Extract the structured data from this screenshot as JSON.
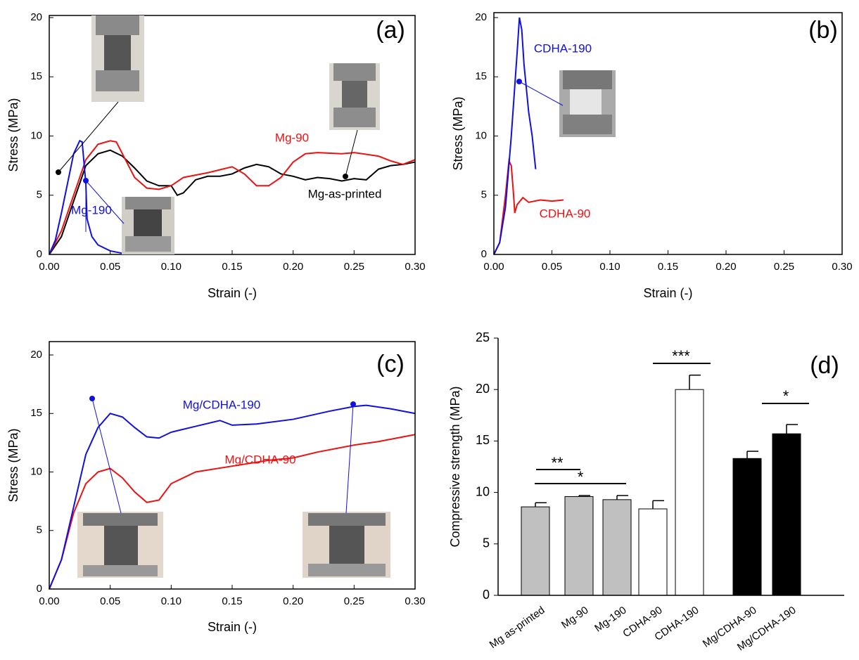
{
  "chart_data": [
    {
      "type": "line",
      "label": "(a)",
      "xlabel": "Strain (-)",
      "ylabel": "Stress (MPa)",
      "xlim": [
        0,
        0.3
      ],
      "xticks": [
        {
          "value": 0,
          "label": "0.00"
        },
        {
          "value": 0.05,
          "label": "0.05"
        },
        {
          "value": 0.1,
          "label": "0.10"
        },
        {
          "value": 0.15,
          "label": "0.15"
        },
        {
          "value": 0.2,
          "label": "0.20"
        },
        {
          "value": 0.25,
          "label": "0.25"
        },
        {
          "value": 0.3,
          "label": "0.30"
        }
      ],
      "ylim": [
        0,
        20
      ],
      "yticks": [
        0,
        5,
        10,
        15,
        20
      ],
      "series": [
        {
          "name": "Mg-190",
          "color": "#1010e0",
          "x": [
            0,
            0.005,
            0.01,
            0.015,
            0.02,
            0.025,
            0.027,
            0.03,
            0.031,
            0.035,
            0.04,
            0.05,
            0.06
          ],
          "values": [
            0,
            1.2,
            3.5,
            6,
            8.5,
            9.6,
            9.5,
            6,
            3,
            1.5,
            0.8,
            0.3,
            0.1
          ]
        },
        {
          "name": "Mg-90",
          "color": "#ee1111",
          "x": [
            0,
            0.01,
            0.02,
            0.03,
            0.04,
            0.05,
            0.055,
            0.06,
            0.07,
            0.08,
            0.09,
            0.1,
            0.11,
            0.12,
            0.13,
            0.15,
            0.16,
            0.17,
            0.18,
            0.19,
            0.2,
            0.21,
            0.22,
            0.24,
            0.25,
            0.27,
            0.28,
            0.29,
            0.3
          ],
          "values": [
            0,
            2,
            5,
            8,
            9.3,
            9.6,
            9.5,
            8.5,
            6.5,
            5.6,
            5.5,
            5.8,
            6.5,
            6.7,
            6.9,
            7.4,
            6.8,
            5.8,
            5.8,
            6.5,
            7.8,
            8.5,
            8.6,
            8.5,
            8.6,
            8.3,
            7.9,
            7.6,
            8.0
          ]
        },
        {
          "name": "Mg-as-printed",
          "color": "#000000",
          "x": [
            0,
            0.01,
            0.02,
            0.03,
            0.04,
            0.05,
            0.06,
            0.07,
            0.08,
            0.09,
            0.1,
            0.105,
            0.11,
            0.12,
            0.13,
            0.14,
            0.15,
            0.16,
            0.17,
            0.18,
            0.19,
            0.2,
            0.21,
            0.22,
            0.23,
            0.24,
            0.25,
            0.26,
            0.27,
            0.28,
            0.29,
            0.3
          ],
          "values": [
            0,
            1.5,
            4.5,
            7.5,
            8.5,
            8.8,
            8.3,
            7.3,
            6.2,
            5.8,
            5.8,
            5.0,
            5.2,
            6.3,
            6.6,
            6.6,
            6.8,
            7.3,
            7.6,
            7.4,
            6.8,
            6.6,
            6.3,
            6.5,
            6.4,
            6.2,
            6.4,
            6.3,
            7.2,
            7.5,
            7.6,
            7.8
          ]
        }
      ]
    },
    {
      "type": "line",
      "label": "(b)",
      "xlabel": "Strain (-)",
      "ylabel": "Stress (MPa)",
      "xlim": [
        0,
        0.3
      ],
      "xticks": [
        {
          "value": 0,
          "label": "0.00"
        },
        {
          "value": 0.05,
          "label": "0.05"
        },
        {
          "value": 0.1,
          "label": "0.10"
        },
        {
          "value": 0.15,
          "label": "0.15"
        },
        {
          "value": 0.2,
          "label": "0.20"
        },
        {
          "value": 0.25,
          "label": "0.25"
        },
        {
          "value": 0.3,
          "label": "0.30"
        }
      ],
      "ylim": [
        0,
        20
      ],
      "yticks": [
        0,
        5,
        10,
        15,
        20
      ],
      "series": [
        {
          "name": "CDHA-190",
          "color": "#1010e0",
          "x": [
            0,
            0.005,
            0.01,
            0.015,
            0.02,
            0.022,
            0.024,
            0.026,
            0.028,
            0.03,
            0.033,
            0.036
          ],
          "values": [
            0,
            1,
            4,
            10,
            17,
            20,
            19,
            16,
            14,
            12,
            10,
            7.2
          ]
        },
        {
          "name": "CDHA-90",
          "color": "#ee1111",
          "x": [
            0,
            0.005,
            0.01,
            0.013,
            0.015,
            0.017,
            0.018,
            0.02,
            0.025,
            0.03,
            0.04,
            0.05,
            0.06
          ],
          "values": [
            0,
            1,
            5,
            7.9,
            7.5,
            5,
            3.5,
            4.2,
            4.8,
            4.4,
            4.6,
            4.5,
            4.6
          ]
        }
      ]
    },
    {
      "type": "line",
      "label": "(c)",
      "xlabel": "Strain (-)",
      "ylabel": "Stress (MPa)",
      "xlim": [
        0,
        0.3
      ],
      "xticks": [
        {
          "value": 0,
          "label": "0.00"
        },
        {
          "value": 0.05,
          "label": "0.05"
        },
        {
          "value": 0.1,
          "label": "0.10"
        },
        {
          "value": 0.15,
          "label": "0.15"
        },
        {
          "value": 0.2,
          "label": "0.20"
        },
        {
          "value": 0.25,
          "label": "0.25"
        },
        {
          "value": 0.3,
          "label": "0.30"
        }
      ],
      "ylim": [
        0,
        20
      ],
      "yticks": [
        0,
        5,
        10,
        15,
        20
      ],
      "series": [
        {
          "name": "Mg/CDHA-190",
          "color": "#1010e0",
          "x": [
            0,
            0.01,
            0.02,
            0.03,
            0.04,
            0.05,
            0.06,
            0.07,
            0.08,
            0.09,
            0.1,
            0.12,
            0.14,
            0.15,
            0.17,
            0.2,
            0.23,
            0.25,
            0.26,
            0.28,
            0.3
          ],
          "values": [
            0,
            2.5,
            7,
            11.5,
            13.8,
            15,
            14.7,
            13.8,
            13,
            12.9,
            13.4,
            13.9,
            14.4,
            14,
            14.1,
            14.5,
            15.2,
            15.6,
            15.7,
            15.4,
            15.0
          ]
        },
        {
          "name": "Mg/CDHA-90",
          "color": "#ee1111",
          "x": [
            0,
            0.01,
            0.02,
            0.03,
            0.04,
            0.05,
            0.06,
            0.07,
            0.08,
            0.09,
            0.1,
            0.12,
            0.15,
            0.18,
            0.2,
            0.22,
            0.25,
            0.27,
            0.3
          ],
          "values": [
            0,
            2.5,
            6.5,
            9,
            10,
            10.3,
            9.5,
            8.3,
            7.4,
            7.6,
            9,
            10,
            10.5,
            11,
            11.2,
            11.7,
            12.3,
            12.6,
            13.2
          ]
        }
      ]
    },
    {
      "type": "bar",
      "label": "(d)",
      "ylabel": "Compressive strength (MPa)",
      "categories": [
        "Mg as-printed",
        "Mg-90",
        "Mg-190",
        "CDHA-90",
        "CDHA-190",
        "Mg/CDHA-90",
        "Mg/CDHA-190"
      ],
      "values": [
        8.6,
        9.6,
        9.3,
        8.4,
        20.0,
        13.3,
        15.7
      ],
      "errors": [
        0.4,
        0.1,
        0.4,
        0.8,
        1.4,
        0.7,
        0.9
      ],
      "colors": [
        "#c0c0c0",
        "#c0c0c0",
        "#c0c0c0",
        "#ffffff",
        "#ffffff",
        "#000000",
        "#000000"
      ],
      "ylim": [
        0,
        25
      ],
      "yticks": [
        0,
        5,
        10,
        15,
        20,
        25
      ],
      "annotations": [
        "**",
        "*",
        "***",
        "*"
      ]
    }
  ]
}
